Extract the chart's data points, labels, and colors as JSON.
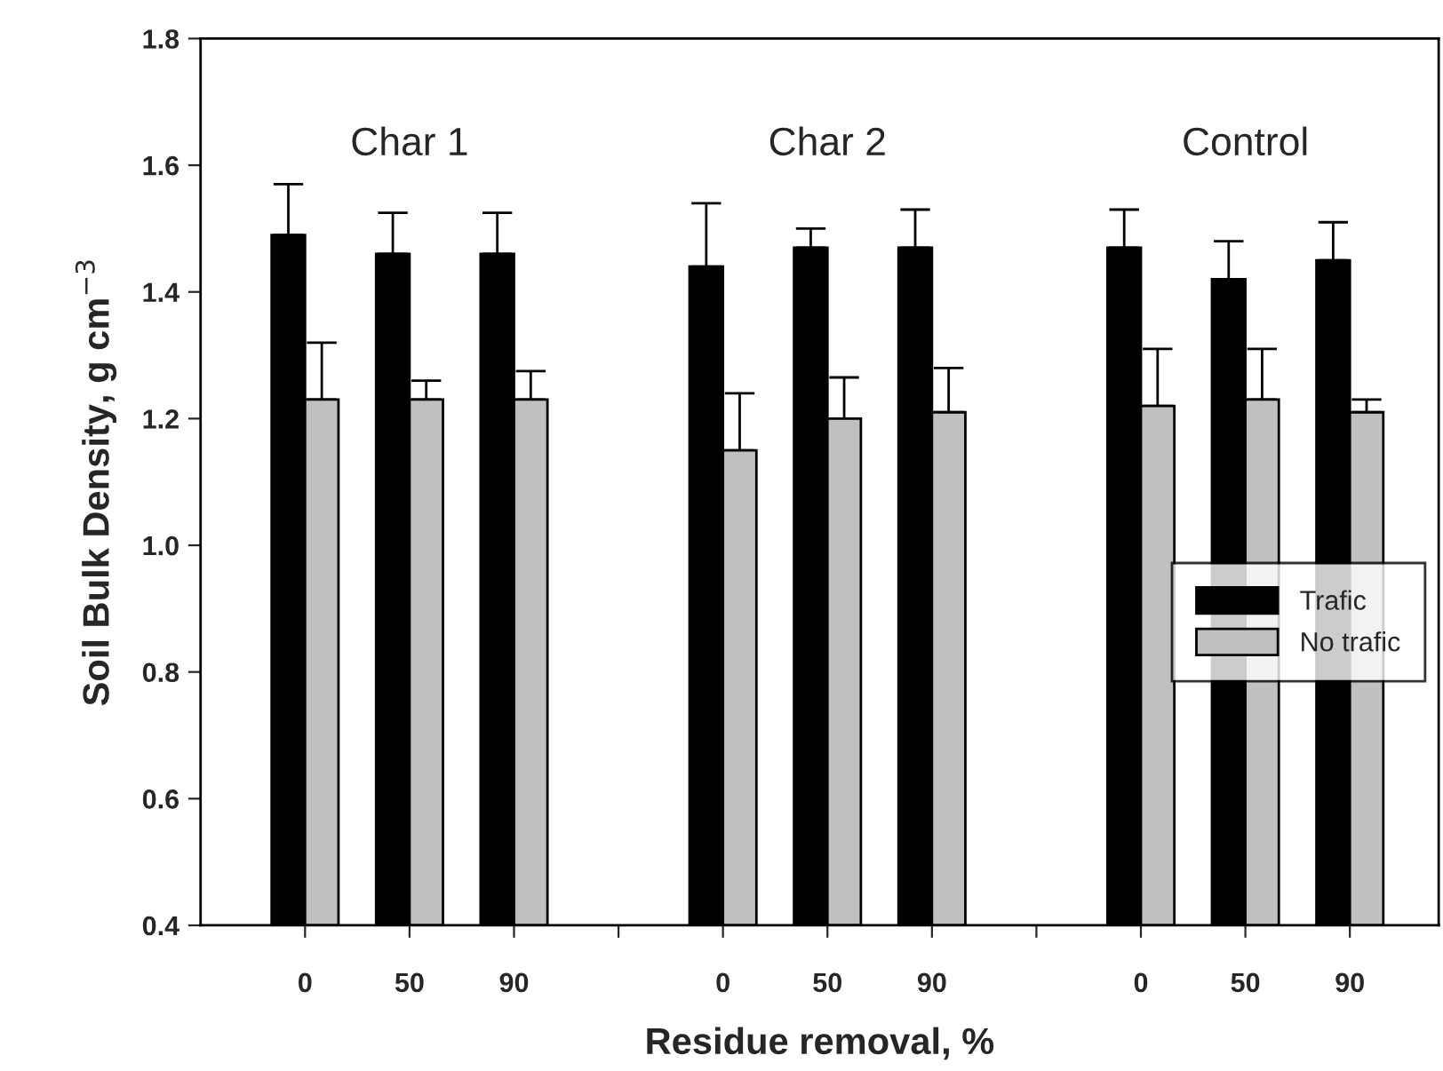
{
  "chart_data": {
    "type": "bar",
    "xlabel": "Residue removal, %",
    "ylabel": "Soil Bulk Density, g cm$^{−3}$",
    "categories": [
      "0",
      "50",
      "90",
      null,
      "0",
      "50",
      "90",
      null,
      "0",
      "50",
      "90"
    ],
    "series": [
      {
        "name": "Trafic",
        "color": "#000000",
        "values": [
          1.49,
          1.46,
          1.46,
          null,
          1.44,
          1.47,
          1.47,
          null,
          1.47,
          1.42,
          1.45
        ],
        "errors": [
          [
            1.49,
            1.57
          ],
          [
            1.46,
            1.525
          ],
          [
            1.46,
            1.525
          ],
          null,
          [
            1.44,
            1.54
          ],
          [
            1.47,
            1.5
          ],
          [
            1.47,
            1.53
          ],
          null,
          [
            1.47,
            1.53
          ],
          [
            1.42,
            1.48
          ],
          [
            1.45,
            1.51
          ]
        ]
      },
      {
        "name": "No trafic",
        "color": "#c0c0c0",
        "values": [
          1.23,
          1.23,
          1.23,
          null,
          1.15,
          1.2,
          1.21,
          null,
          1.22,
          1.23,
          1.21
        ],
        "errors": [
          [
            1.23,
            1.32
          ],
          [
            1.23,
            1.26
          ],
          [
            1.23,
            1.275
          ],
          null,
          [
            1.15,
            1.24
          ],
          [
            1.2,
            1.265
          ],
          [
            1.21,
            1.28
          ],
          null,
          [
            1.22,
            1.31
          ],
          [
            1.23,
            1.31
          ],
          [
            1.21,
            1.23
          ]
        ]
      }
    ],
    "annotations": [
      "Char 1",
      "Char 2",
      "Control"
    ],
    "ylim": [
      0.4,
      1.8
    ],
    "yticks": [
      0.4,
      0.6,
      0.8,
      {
        "value": 1.0,
        "label": "1.0"
      },
      1.2,
      1.4,
      1.6,
      1.8
    ],
    "legend": "bottom right"
  }
}
